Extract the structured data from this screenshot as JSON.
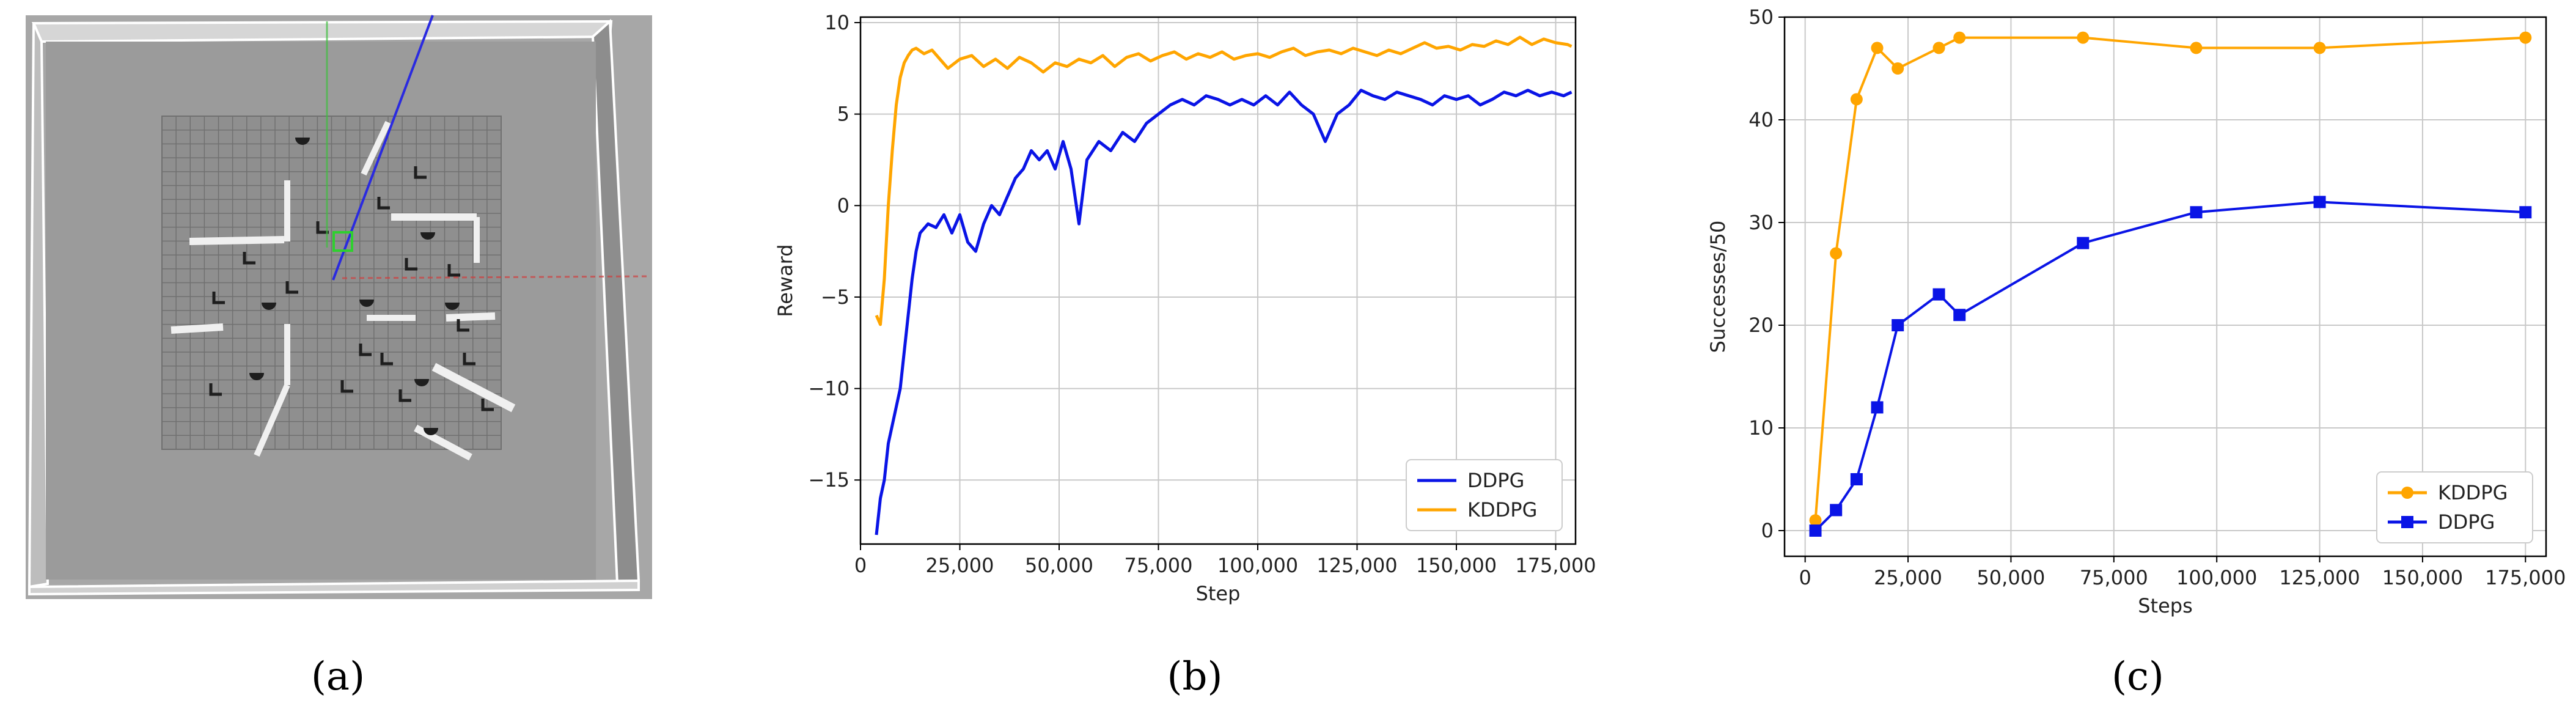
{
  "panels": {
    "a": {
      "label": "(a)"
    },
    "b": {
      "label": "(b)"
    },
    "c": {
      "label": "(c)"
    }
  },
  "colors": {
    "ddpg": "#0a14e6",
    "kddpg": "#ffa500",
    "grid": "#c8c8c8",
    "axis": "#000000",
    "sim_floor": "#9a9a9a",
    "sim_wall": "#c9c9c9"
  },
  "chart_data": [
    {
      "panel": "b",
      "type": "line",
      "xlabel": "Step",
      "ylabel": "Reward",
      "xlim": [
        0,
        180000
      ],
      "ylim": [
        -18.5,
        10.3
      ],
      "xticks": [
        0,
        25000,
        50000,
        75000,
        100000,
        125000,
        150000,
        175000
      ],
      "xtick_labels": [
        "0",
        "25,000",
        "50,000",
        "75,000",
        "100,000",
        "125,000",
        "150,000",
        "175,000"
      ],
      "yticks": [
        -15,
        -10,
        -5,
        0,
        5,
        10
      ],
      "ytick_labels": [
        "−15",
        "−10",
        "−5",
        "0",
        "5",
        "10"
      ],
      "grid": true,
      "legend": "bottom-right",
      "series": [
        {
          "name": "DDPG",
          "color_key": "ddpg",
          "x": [
            4000,
            5000,
            6000,
            7000,
            8000,
            9000,
            10000,
            11000,
            12000,
            13000,
            14000,
            15000,
            17000,
            19000,
            21000,
            23000,
            25000,
            27000,
            29000,
            31000,
            33000,
            35000,
            37000,
            39000,
            41000,
            43000,
            45000,
            47000,
            49000,
            51000,
            53000,
            55000,
            57000,
            60000,
            63000,
            66000,
            69000,
            72000,
            75000,
            78000,
            81000,
            84000,
            87000,
            90000,
            93000,
            96000,
            99000,
            102000,
            105000,
            108000,
            111000,
            114000,
            117000,
            120000,
            123000,
            126000,
            129000,
            132000,
            135000,
            138000,
            141000,
            144000,
            147000,
            150000,
            153000,
            156000,
            159000,
            162000,
            165000,
            168000,
            171000,
            174000,
            177000,
            179000
          ],
          "y": [
            -18,
            -16,
            -15,
            -13,
            -12,
            -11,
            -10,
            -8,
            -6,
            -4,
            -2.5,
            -1.5,
            -1,
            -1.2,
            -0.5,
            -1.5,
            -0.5,
            -2,
            -2.5,
            -1,
            0,
            -0.5,
            0.5,
            1.5,
            2,
            3,
            2.5,
            3,
            2,
            3.5,
            2,
            -1,
            2.5,
            3.5,
            3,
            4,
            3.5,
            4.5,
            5,
            5.5,
            5.8,
            5.5,
            6,
            5.8,
            5.5,
            5.8,
            5.5,
            6,
            5.5,
            6.2,
            5.5,
            5,
            3.5,
            5,
            5.5,
            6.3,
            6,
            5.8,
            6.2,
            6,
            5.8,
            5.5,
            6,
            5.8,
            6,
            5.5,
            5.8,
            6.2,
            6,
            6.3,
            6,
            6.2,
            6,
            6.2
          ]
        },
        {
          "name": "KDDPG",
          "color_key": "kddpg",
          "x": [
            4000,
            5000,
            6000,
            7000,
            8000,
            9000,
            10000,
            11000,
            12000,
            13000,
            14000,
            16000,
            18000,
            20000,
            22000,
            25000,
            28000,
            31000,
            34000,
            37000,
            40000,
            43000,
            46000,
            49000,
            52000,
            55000,
            58000,
            61000,
            64000,
            67000,
            70000,
            73000,
            76000,
            79000,
            82000,
            85000,
            88000,
            91000,
            94000,
            97000,
            100000,
            103000,
            106000,
            109000,
            112000,
            115000,
            118000,
            121000,
            124000,
            127000,
            130000,
            133000,
            136000,
            139000,
            142000,
            145000,
            148000,
            151000,
            154000,
            157000,
            160000,
            163000,
            166000,
            169000,
            172000,
            175000,
            178000,
            179000
          ],
          "y": [
            -6,
            -6.5,
            -4,
            0,
            3,
            5.5,
            7,
            7.8,
            8.2,
            8.5,
            8.6,
            8.3,
            8.5,
            8,
            7.5,
            8,
            8.2,
            7.6,
            8,
            7.5,
            8.1,
            7.8,
            7.3,
            7.8,
            7.6,
            8,
            7.8,
            8.2,
            7.6,
            8.1,
            8.3,
            7.9,
            8.2,
            8.4,
            8,
            8.3,
            8.1,
            8.4,
            8,
            8.2,
            8.3,
            8.1,
            8.4,
            8.6,
            8.2,
            8.4,
            8.5,
            8.3,
            8.6,
            8.4,
            8.2,
            8.5,
            8.3,
            8.6,
            8.9,
            8.6,
            8.7,
            8.5,
            8.8,
            8.7,
            9,
            8.8,
            9.2,
            8.8,
            9.1,
            8.9,
            8.8,
            8.7
          ]
        }
      ]
    },
    {
      "panel": "c",
      "type": "line",
      "xlabel": "Steps",
      "ylabel": "Successes/50",
      "xlim": [
        -5000,
        180000
      ],
      "ylim": [
        -2.5,
        50
      ],
      "xticks": [
        0,
        25000,
        50000,
        75000,
        100000,
        125000,
        150000,
        175000
      ],
      "xtick_labels": [
        "0",
        "25,000",
        "50,000",
        "75,000",
        "100,000",
        "125,000",
        "150,000",
        "175,000"
      ],
      "yticks": [
        0,
        10,
        20,
        30,
        40,
        50
      ],
      "ytick_labels": [
        "0",
        "10",
        "20",
        "30",
        "40",
        "50"
      ],
      "grid": true,
      "legend": "bottom-right",
      "series": [
        {
          "name": "KDDPG",
          "color_key": "kddpg",
          "marker": "circle",
          "x": [
            2500,
            7500,
            12500,
            17500,
            22500,
            32500,
            37500,
            67500,
            95000,
            125000,
            175000
          ],
          "y": [
            1,
            27,
            42,
            47,
            45,
            47,
            48,
            48,
            47,
            47,
            48
          ]
        },
        {
          "name": "DDPG",
          "color_key": "ddpg",
          "marker": "square",
          "x": [
            2500,
            7500,
            12500,
            17500,
            22500,
            32500,
            37500,
            67500,
            95000,
            125000,
            175000
          ],
          "y": [
            0,
            2,
            5,
            12,
            20,
            23,
            21,
            28,
            31,
            32,
            31
          ]
        }
      ]
    }
  ]
}
